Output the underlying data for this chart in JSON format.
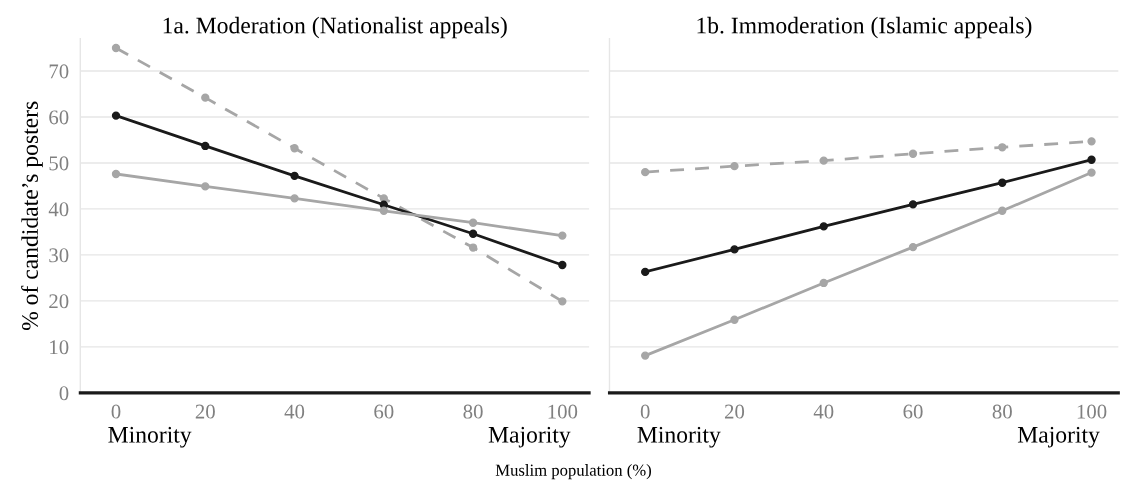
{
  "chart_data": [
    {
      "type": "line",
      "title": "1a. Moderation (Nationalist appeals)",
      "ylabel": "% of candidate’s posters",
      "xlabel": "Muslim population (%)",
      "x": [
        0,
        20,
        40,
        60,
        80,
        100
      ],
      "xlim": [
        -8,
        106
      ],
      "xticks": [
        0,
        20,
        40,
        60,
        80,
        100
      ],
      "ylim": [
        0,
        77
      ],
      "yticks": [
        0,
        10,
        20,
        30,
        40,
        50,
        60,
        70
      ],
      "grid": "y",
      "marker": "circle",
      "annotations": [
        "Minority",
        "Majority"
      ],
      "series": [
        {
          "color": "#a6a6a6",
          "line_style": "dashed",
          "values": [
            75.0,
            64.2,
            53.2,
            42.3,
            31.6,
            19.9
          ]
        },
        {
          "color": "#1a1a1a",
          "line_style": "solid",
          "values": [
            60.3,
            53.7,
            47.2,
            40.9,
            34.6,
            27.8
          ]
        },
        {
          "color": "#a6a6a6",
          "line_style": "solid",
          "values": [
            47.6,
            44.9,
            42.3,
            39.6,
            37.0,
            34.2
          ]
        }
      ]
    },
    {
      "type": "line",
      "title": "1b. Immoderation (Islamic appeals)",
      "x": [
        0,
        20,
        40,
        60,
        80,
        100
      ],
      "xlim": [
        -8,
        106
      ],
      "xticks": [
        0,
        20,
        40,
        60,
        80,
        100
      ],
      "ylim": [
        0,
        77
      ],
      "yticks": [
        0,
        10,
        20,
        30,
        40,
        50,
        60,
        70
      ],
      "tick_labels": "x",
      "grid": "y",
      "marker": "circle",
      "annotations": [
        "Minority",
        "Majority"
      ],
      "series": [
        {
          "color": "#a6a6a6",
          "line_style": "dashed",
          "values": [
            48.0,
            49.3,
            50.5,
            52.0,
            53.4,
            54.7
          ]
        },
        {
          "color": "#1a1a1a",
          "line_style": "solid",
          "values": [
            26.3,
            31.2,
            36.2,
            41.0,
            45.7,
            50.7
          ]
        },
        {
          "color": "#a6a6a6",
          "line_style": "solid",
          "values": [
            8.1,
            15.9,
            23.9,
            31.7,
            39.6,
            47.9
          ]
        }
      ]
    }
  ]
}
